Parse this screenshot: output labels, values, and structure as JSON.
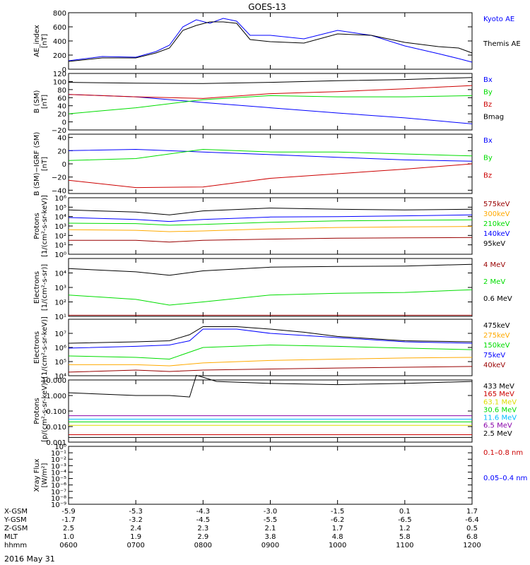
{
  "title": "GOES-13",
  "date": "2016 May 31",
  "colors": {
    "black": "#000000",
    "blue": "#0000ff",
    "red": "#cc0000",
    "green": "#00dd00",
    "orange": "#ffaa00",
    "darkred": "#990000",
    "cyan": "#00bbff",
    "purple": "#8800aa",
    "yellow": "#dddd00"
  },
  "chart_data": [
    {
      "type": "line",
      "ylabel": "AE_index\n[nT]",
      "yscale": "linear",
      "ylim": [
        0,
        800
      ],
      "yticks": [
        0,
        200,
        400,
        600,
        800
      ],
      "ytick_labels": [
        "0",
        "200",
        "400",
        "600",
        "800"
      ],
      "series": [
        {
          "name": "Kyoto AE",
          "color": "#0000ff",
          "x": [
            0,
            0.5,
            1,
            1.3,
            1.5,
            1.7,
            1.9,
            2.1,
            2.3,
            2.5,
            2.7,
            3.0,
            3.5,
            4.0,
            4.5,
            5.0,
            5.5,
            5.8,
            6.0
          ],
          "y": [
            120,
            180,
            170,
            250,
            340,
            600,
            700,
            650,
            720,
            680,
            480,
            480,
            430,
            550,
            480,
            330,
            220,
            150,
            100
          ]
        },
        {
          "name": "Themis AE",
          "color": "#000000",
          "x": [
            0,
            0.5,
            1,
            1.3,
            1.5,
            1.7,
            1.9,
            2.1,
            2.3,
            2.5,
            2.7,
            3.0,
            3.5,
            4.0,
            4.5,
            5.0,
            5.5,
            5.8,
            6.0
          ],
          "y": [
            110,
            160,
            160,
            230,
            300,
            550,
            620,
            670,
            670,
            650,
            420,
            390,
            370,
            500,
            480,
            380,
            320,
            300,
            230
          ]
        }
      ]
    },
    {
      "type": "line",
      "ylabel": "B (SM)\n[nT]",
      "yscale": "linear",
      "ylim": [
        -20,
        120
      ],
      "yticks": [
        -20,
        0,
        20,
        40,
        60,
        80,
        100,
        120
      ],
      "ytick_labels": [
        "−20",
        "0",
        "20",
        "40",
        "60",
        "80",
        "100",
        "120"
      ],
      "series": [
        {
          "name": "Bx",
          "color": "#0000ff",
          "x": [
            0,
            1,
            2,
            3,
            4,
            5,
            6
          ],
          "y": [
            68,
            62,
            48,
            35,
            22,
            10,
            -5
          ]
        },
        {
          "name": "By",
          "color": "#00dd00",
          "x": [
            0,
            1,
            2,
            3,
            4,
            5,
            6
          ],
          "y": [
            20,
            35,
            55,
            65,
            62,
            62,
            65
          ]
        },
        {
          "name": "Bz",
          "color": "#cc0000",
          "x": [
            0,
            1,
            2,
            3,
            4,
            5,
            6
          ],
          "y": [
            68,
            62,
            58,
            70,
            75,
            82,
            90
          ]
        },
        {
          "name": "Bmag",
          "color": "#000000",
          "x": [
            0,
            1,
            2,
            3,
            4,
            5,
            6
          ],
          "y": [
            98,
            96,
            95,
            98,
            102,
            105,
            110
          ]
        }
      ]
    },
    {
      "type": "line",
      "ylabel": "B (SM)−IGRF (SM)\n[nT]",
      "yscale": "linear",
      "ylim": [
        -45,
        45
      ],
      "yticks": [
        -40,
        -20,
        0,
        20,
        40
      ],
      "ytick_labels": [
        "−40",
        "−20",
        "0",
        "20",
        "40"
      ],
      "series": [
        {
          "name": "Bx",
          "color": "#0000ff",
          "x": [
            0,
            1,
            2,
            3,
            4,
            5,
            6
          ],
          "y": [
            20,
            22,
            18,
            14,
            10,
            6,
            4
          ]
        },
        {
          "name": "By",
          "color": "#00dd00",
          "x": [
            0,
            1,
            2,
            3,
            4,
            5,
            6
          ],
          "y": [
            5,
            8,
            22,
            18,
            18,
            15,
            12
          ]
        },
        {
          "name": "Bz",
          "color": "#cc0000",
          "x": [
            0,
            1,
            2,
            3,
            4,
            5,
            6
          ],
          "y": [
            -25,
            -36,
            -35,
            -22,
            -15,
            -8,
            0
          ]
        }
      ]
    },
    {
      "type": "line",
      "ylabel": "Protons\n[1/(cm²-s-sr-keV)]",
      "yscale": "log",
      "ylim": [
        1,
        1000000
      ],
      "yticks": [
        1,
        10,
        100,
        1000,
        10000,
        100000,
        1000000
      ],
      "ytick_labels": [
        "10⁰",
        "10¹",
        "10²",
        "10³",
        "10⁴",
        "10⁵",
        "10⁶"
      ],
      "series": [
        {
          "name": "575keV",
          "color": "#990000",
          "x": [
            0,
            1,
            1.5,
            2,
            3,
            4,
            5,
            6
          ],
          "y": [
            30,
            30,
            20,
            30,
            40,
            50,
            55,
            60
          ]
        },
        {
          "name": "300keV",
          "color": "#ffaa00",
          "x": [
            0,
            1,
            1.5,
            2,
            3,
            4,
            5,
            6
          ],
          "y": [
            400,
            350,
            250,
            300,
            500,
            700,
            800,
            900
          ]
        },
        {
          "name": "210keV",
          "color": "#00dd00",
          "x": [
            0,
            1,
            1.5,
            2,
            3,
            4,
            5,
            6
          ],
          "y": [
            2000,
            1800,
            1200,
            1500,
            2500,
            3500,
            4000,
            4500
          ]
        },
        {
          "name": "140keV",
          "color": "#0000ff",
          "x": [
            0,
            1,
            1.5,
            2,
            3,
            4,
            5,
            6
          ],
          "y": [
            8000,
            5000,
            3000,
            5000,
            9000,
            10000,
            12000,
            15000
          ]
        },
        {
          "name": "95keV",
          "color": "#000000",
          "x": [
            0,
            1,
            1.5,
            2,
            3,
            4,
            5,
            6
          ],
          "y": [
            50000,
            30000,
            15000,
            40000,
            80000,
            60000,
            50000,
            60000
          ]
        }
      ]
    },
    {
      "type": "line",
      "ylabel": "Electrons\n[1/(cm²-s-sr)]",
      "yscale": "log",
      "ylim": [
        10,
        100000
      ],
      "yticks": [
        10,
        100,
        1000,
        10000
      ],
      "ytick_labels": [
        "10¹",
        "10²",
        "10³",
        "10⁴"
      ],
      "series": [
        {
          "name": "4 MeV",
          "color": "#990000",
          "x": [
            0,
            2,
            4,
            6
          ],
          "y": [
            12,
            12,
            12,
            12
          ]
        },
        {
          "name": "2 MeV",
          "color": "#00dd00",
          "x": [
            0,
            1,
            1.5,
            2,
            3,
            4,
            5,
            6
          ],
          "y": [
            300,
            150,
            60,
            100,
            300,
            400,
            450,
            700
          ]
        },
        {
          "name": "0.6 MeV",
          "color": "#000000",
          "x": [
            0,
            1,
            1.5,
            2,
            3,
            4,
            5,
            6
          ],
          "y": [
            20000,
            12000,
            7000,
            14000,
            25000,
            28000,
            30000,
            40000
          ]
        }
      ]
    },
    {
      "type": "line",
      "ylabel": "Electrons\n[1/(cm²-s-sr-keV)]",
      "yscale": "log",
      "ylim": [
        10000,
        100000000
      ],
      "yticks": [
        10000,
        100000,
        1000000,
        10000000
      ],
      "ytick_labels": [
        "10⁴",
        "10⁵",
        "10⁶",
        "10⁷"
      ],
      "series": [
        {
          "name": "475keV",
          "color": "#000000",
          "x": [
            0,
            1,
            1.5,
            1.8,
            2,
            2.5,
            3,
            3.5,
            4,
            5,
            6
          ],
          "y": [
            2000000,
            2500000,
            3000000,
            8000000,
            30000000,
            30000000,
            20000000,
            12000000,
            6000000,
            3000000,
            2500000
          ]
        },
        {
          "name": "275keV",
          "color": "#ffaa00",
          "x": [
            0,
            1,
            1.5,
            2,
            3,
            4,
            5,
            6
          ],
          "y": [
            60000,
            60000,
            50000,
            80000,
            120000,
            150000,
            180000,
            200000
          ]
        },
        {
          "name": "150keV",
          "color": "#00dd00",
          "x": [
            0,
            1,
            1.5,
            2,
            3,
            4,
            5,
            6
          ],
          "y": [
            250000,
            200000,
            150000,
            1000000,
            1500000,
            1200000,
            900000,
            700000
          ]
        },
        {
          "name": "75keV",
          "color": "#0000ff",
          "x": [
            0,
            1,
            1.5,
            1.8,
            2,
            2.5,
            3,
            4,
            5,
            6
          ],
          "y": [
            900000,
            1200000,
            1500000,
            3000000,
            20000000,
            20000000,
            10000000,
            5000000,
            2500000,
            2000000
          ]
        },
        {
          "name": "40keV",
          "color": "#990000",
          "x": [
            0,
            1,
            1.5,
            2,
            3,
            4,
            5,
            6
          ],
          "y": [
            18000,
            25000,
            20000,
            25000,
            30000,
            35000,
            40000,
            45000
          ]
        }
      ]
    },
    {
      "type": "line",
      "ylabel": "Protons\n[p/(cm²-s-sr-keV)]",
      "yscale": "log",
      "ylim": [
        0.001,
        10
      ],
      "yticks": [
        0.001,
        0.01,
        0.1,
        1,
        10
      ],
      "ytick_labels": [
        "0.001",
        "0.010",
        "0.100",
        "1.000",
        "10.000"
      ],
      "series": [
        {
          "name": "433 MeV",
          "color": "#000000",
          "x": [
            0,
            1,
            1.5,
            1.8,
            1.9,
            2.0,
            2.2,
            3,
            4,
            5,
            6
          ],
          "y": [
            1.5,
            1,
            1,
            0.8,
            20,
            15,
            8,
            6,
            5,
            6,
            8
          ]
        },
        {
          "name": "165 MeV",
          "color": "#cc0000",
          "x": [
            0,
            6
          ],
          "y": [
            0.003,
            0.003
          ]
        },
        {
          "name": "63.1 MeV",
          "color": "#dddd00",
          "x": [
            0,
            6
          ],
          "y": [
            0.012,
            0.012
          ]
        },
        {
          "name": "30.6 MeV",
          "color": "#00dd00",
          "x": [
            0,
            6
          ],
          "y": [
            0.02,
            0.02
          ]
        },
        {
          "name": "11.6 MeV",
          "color": "#00bbff",
          "x": [
            0,
            6
          ],
          "y": [
            0.03,
            0.03
          ]
        },
        {
          "name": "6.5 MeV",
          "color": "#8800aa",
          "x": [
            0,
            6
          ],
          "y": [
            0.05,
            0.05
          ]
        },
        {
          "name": "2.5 MeV",
          "color": "#000000",
          "x": [
            0,
            6
          ],
          "y": [
            0.002,
            0.002
          ]
        }
      ]
    },
    {
      "type": "line",
      "ylabel": "Xray Flux\n[W/m²]",
      "yscale": "log",
      "ylim": [
        1e-09,
        1
      ],
      "yticks": [
        1e-09,
        1e-08,
        1e-07,
        1e-06,
        1e-05,
        0.0001,
        0.001,
        0.01,
        0.1,
        1
      ],
      "ytick_labels": [
        "10⁻⁹",
        "10⁻⁸",
        "10⁻⁷",
        "10⁻⁶",
        "10⁻⁵",
        "10⁻⁴",
        "10⁻³",
        "10⁻²",
        "10⁻¹",
        "10⁰"
      ],
      "series": [
        {
          "name": "0.1–0.8 nm",
          "color": "#cc0000",
          "x": [],
          "y": []
        },
        {
          "name": "0.05–0.4 nm",
          "color": "#0000ff",
          "x": [],
          "y": []
        }
      ]
    }
  ],
  "x_axis": {
    "row_labels": [
      "X-GSM",
      "Y-GSM",
      "Z-GSM",
      "MLT",
      "hhmm"
    ],
    "columns": [
      [
        "-5.9",
        "-1.7",
        "2.5",
        "1.0",
        "0600"
      ],
      [
        "-5.3",
        "-3.2",
        "2.4",
        "1.9",
        "0700"
      ],
      [
        "-4.3",
        "-4.5",
        "2.3",
        "2.9",
        "0800"
      ],
      [
        "-3.0",
        "-5.5",
        "2.1",
        "3.8",
        "0900"
      ],
      [
        "-1.5",
        "-6.2",
        "1.7",
        "4.8",
        "1000"
      ],
      [
        "0.1",
        "-6.5",
        "1.2",
        "5.8",
        "1100"
      ],
      [
        "1.7",
        "-6.4",
        "0.5",
        "6.8",
        "1200"
      ]
    ]
  }
}
